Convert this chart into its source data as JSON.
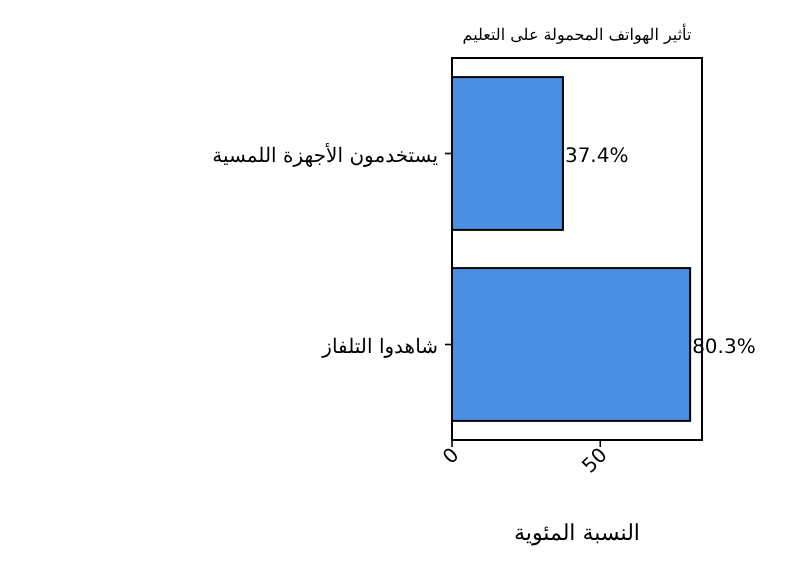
{
  "chart_data": {
    "type": "bar",
    "orientation": "horizontal",
    "title": "تأثير الهواتف المحمولة على التعليم",
    "xlabel": "النسبة المئوية",
    "categories": [
      "يستخدمون الأجهزة اللمسية",
      "شاهدوا التلفاز"
    ],
    "values": [
      37.4,
      80.3
    ],
    "value_labels": [
      "37.4%",
      "80.3%"
    ],
    "color": "#4a90e2",
    "xlim": [
      0,
      84.3
    ],
    "xticks": [
      0,
      50
    ]
  }
}
